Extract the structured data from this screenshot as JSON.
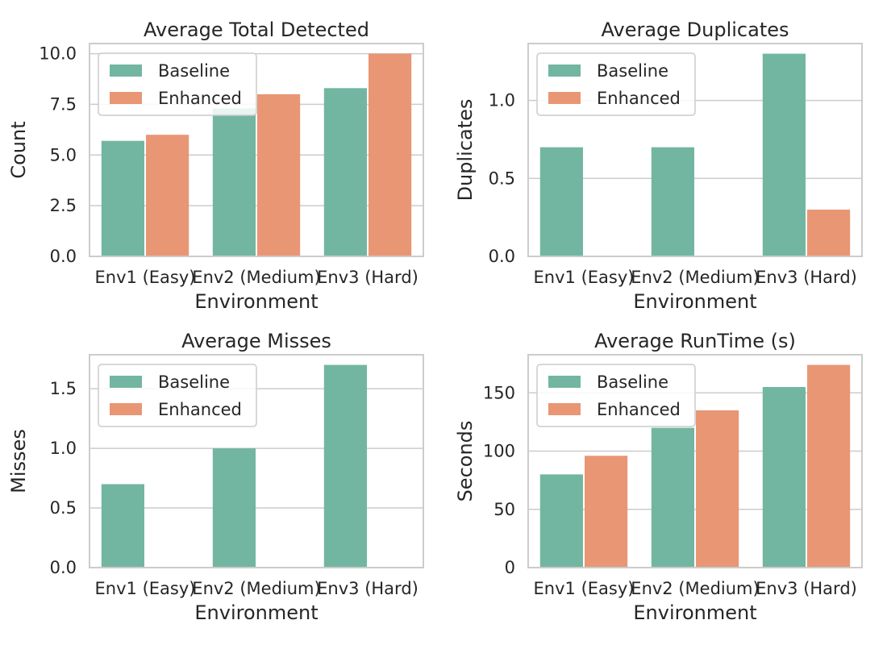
{
  "colors": {
    "baseline": "#72b6a1",
    "enhanced": "#e99675",
    "grid": "#cccccc",
    "spine": "#cccccc",
    "legend_border": "#cccccc",
    "background": "#ffffff"
  },
  "chart_data": [
    {
      "type": "bar",
      "title": "Average Total Detected",
      "xlabel": "Environment",
      "ylabel": "Count",
      "categories": [
        "Env1 (Easy)",
        "Env2 (Medium)",
        "Env3 (Hard)"
      ],
      "ylim": [
        0,
        10.5
      ],
      "yticks": [
        0,
        2.5,
        5,
        7.5,
        10
      ],
      "ytick_labels": [
        "0.0",
        "2.5",
        "5.0",
        "7.5",
        "10.0"
      ],
      "legend_position": "top-left",
      "grid": "horizontal",
      "series": [
        {
          "name": "Baseline",
          "values": [
            5.7,
            7.3,
            8.3
          ]
        },
        {
          "name": "Enhanced",
          "values": [
            6.0,
            8.0,
            10.0
          ]
        }
      ]
    },
    {
      "type": "bar",
      "title": "Average Duplicates",
      "xlabel": "Environment",
      "ylabel": "Duplicates",
      "categories": [
        "Env1 (Easy)",
        "Env2 (Medium)",
        "Env3 (Hard)"
      ],
      "ylim": [
        0,
        1.365
      ],
      "yticks": [
        0,
        0.5,
        1.0
      ],
      "ytick_labels": [
        "0.0",
        "0.5",
        "1.0"
      ],
      "legend_position": "top-left",
      "grid": "horizontal",
      "series": [
        {
          "name": "Baseline",
          "values": [
            0.7,
            0.7,
            1.3
          ]
        },
        {
          "name": "Enhanced",
          "values": [
            0.0,
            0.0,
            0.3
          ]
        }
      ]
    },
    {
      "type": "bar",
      "title": "Average Misses",
      "xlabel": "Environment",
      "ylabel": "Misses",
      "categories": [
        "Env1 (Easy)",
        "Env2 (Medium)",
        "Env3 (Hard)"
      ],
      "ylim": [
        0,
        1.785
      ],
      "yticks": [
        0,
        0.5,
        1.0,
        1.5
      ],
      "ytick_labels": [
        "0.0",
        "0.5",
        "1.0",
        "1.5"
      ],
      "legend_position": "top-left",
      "grid": "horizontal",
      "series": [
        {
          "name": "Baseline",
          "values": [
            0.7,
            1.0,
            1.7
          ]
        },
        {
          "name": "Enhanced",
          "values": [
            0.0,
            0.0,
            0.0
          ]
        }
      ]
    },
    {
      "type": "bar",
      "title": "Average RunTime (s)",
      "xlabel": "Environment",
      "ylabel": "Seconds",
      "categories": [
        "Env1 (Easy)",
        "Env2 (Medium)",
        "Env3 (Hard)"
      ],
      "ylim": [
        0,
        182.7
      ],
      "yticks": [
        0,
        50,
        100,
        150
      ],
      "ytick_labels": [
        "0",
        "50",
        "100",
        "150"
      ],
      "legend_position": "top-left",
      "grid": "horizontal",
      "series": [
        {
          "name": "Baseline",
          "values": [
            80,
            120,
            155
          ]
        },
        {
          "name": "Enhanced",
          "values": [
            96,
            135,
            174
          ]
        }
      ]
    }
  ]
}
